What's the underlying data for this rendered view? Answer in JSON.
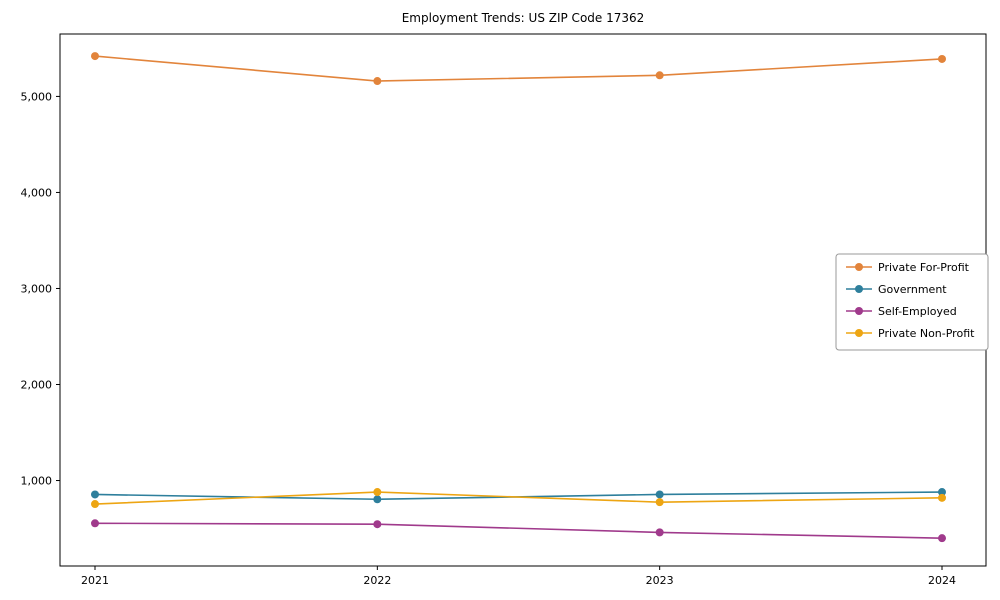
{
  "chart": {
    "title": "Employment Trends: US ZIP Code 17362"
  },
  "chart_data": {
    "type": "line",
    "title": "Employment Trends: US ZIP Code 17362",
    "x": [
      2021,
      2022,
      2023,
      2024
    ],
    "x_tick_labels": [
      "2021",
      "2022",
      "2023",
      "2024"
    ],
    "y_ticks": [
      1000,
      2000,
      3000,
      4000,
      5000
    ],
    "y_tick_labels": [
      "1,000",
      "2,000",
      "3,000",
      "4,000",
      "5,000"
    ],
    "ylim": [
      110,
      5650
    ],
    "xlabel": "",
    "ylabel": "",
    "grid": false,
    "legend_position": "center-right",
    "marker": "circle",
    "series": [
      {
        "name": "Private For-Profit",
        "color": "#e2843b",
        "values": [
          5420,
          5160,
          5220,
          5390
        ]
      },
      {
        "name": "Government",
        "color": "#2e7f9c",
        "values": [
          855,
          805,
          855,
          880
        ]
      },
      {
        "name": "Self-Employed",
        "color": "#a03a8c",
        "values": [
          555,
          545,
          460,
          400
        ]
      },
      {
        "name": "Private Non-Profit",
        "color": "#eda513",
        "values": [
          755,
          880,
          775,
          820
        ]
      }
    ]
  }
}
